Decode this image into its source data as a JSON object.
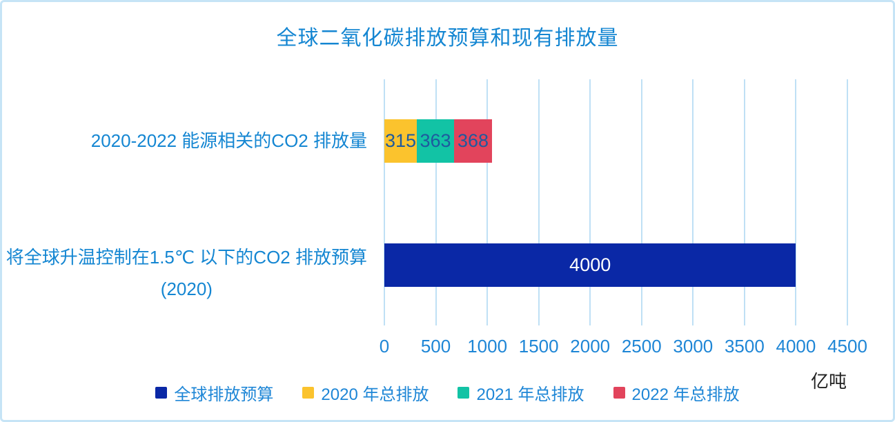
{
  "title": "全球二氧化碳排放预算和现有排放量",
  "colors": {
    "title_text": "#1486d2",
    "axis_text": "#1e86d6",
    "budget_navy": "#0a28a6",
    "year2020_yellow": "#fbc32d",
    "year2021_teal": "#12c3a5",
    "year2022_red": "#e2445c",
    "segment_value_text": "#1e5a9e",
    "budget_value_text": "#ffffff",
    "gridline": "#bfe0f5",
    "frame_border": "#c6e4f6",
    "unit_text": "#222222"
  },
  "chart_data": {
    "type": "bar",
    "orientation": "horizontal",
    "stacked": true,
    "title": "全球二氧化碳排放预算和现有排放量",
    "x_axis": {
      "ticks": [
        0,
        500,
        1000,
        1500,
        2000,
        2500,
        3000,
        3500,
        4000,
        4500
      ],
      "xlim": [
        0,
        4500
      ],
      "unit": "亿吨",
      "gridlines": "vertical-on"
    },
    "rows": [
      {
        "label_lines": [
          "2020-2022 能源相关的CO2 排放量"
        ],
        "segments": [
          {
            "series": "2020 年总排放",
            "value": 315,
            "color": "#fbc32d",
            "value_color": "#1e5a9e"
          },
          {
            "series": "2021 年总排放",
            "value": 363,
            "color": "#12c3a5",
            "value_color": "#1e5a9e"
          },
          {
            "series": "2022 年总排放",
            "value": 368,
            "color": "#e2445c",
            "value_color": "#1e5a9e"
          }
        ]
      },
      {
        "label_lines": [
          "将全球升温控制在1.5℃ 以下的CO2 排放预算",
          "(2020)"
        ],
        "segments": [
          {
            "series": "全球排放预算",
            "value": 4000,
            "color": "#0a28a6",
            "value_color": "#ffffff"
          }
        ]
      }
    ],
    "legend": {
      "position": "bottom",
      "items": [
        {
          "label": "全球排放预算",
          "color": "#0a28a6"
        },
        {
          "label": "2020 年总排放",
          "color": "#fbc32d"
        },
        {
          "label": "2021 年总排放",
          "color": "#12c3a5"
        },
        {
          "label": "2022 年总排放",
          "color": "#e2445c"
        }
      ]
    }
  }
}
